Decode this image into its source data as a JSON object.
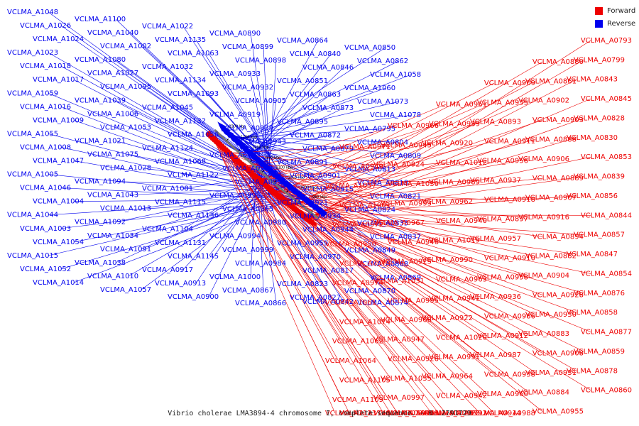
{
  "caption": "Vibrio cholerae LMA3894-4 chromosome I, complete sequence. - 0..2791729",
  "legend": [
    {
      "label": "Forward",
      "color": "#ee0000"
    },
    {
      "label": "Reverse",
      "color": "#0000ee"
    }
  ],
  "colors": {
    "forward": "#ee0000",
    "reverse": "#0000ee",
    "backbone": "#777777"
  },
  "ticks": [
    "950 kbp",
    "1000 kbp",
    "1050 kbp",
    "1100 kbp",
    "1150 kbp",
    "1200 kbp",
    "1250 kbp",
    "1300 kbp"
  ],
  "reverse_labels": [
    "VCLMA_A1048",
    "VCLMA_A1026",
    "VCLMA_A1024",
    "VCLMA_A1023",
    "VCLMA_A1018",
    "VCLMA_A1017",
    "VCLMA_A1059",
    "VCLMA_A1016",
    "VCLMA_A1009",
    "VCLMA_A1055",
    "VCLMA_A1008",
    "VCLMA_A1047",
    "VCLMA_A1005",
    "VCLMA_A1046",
    "VCLMA_A1004",
    "VCLMA_A1044",
    "VCLMA_A1003",
    "VCLMA_A1054",
    "VCLMA_A1015",
    "VCLMA_A1052",
    "VCLMA_A1014",
    "VCLMA_A1100",
    "VCLMA_A1040",
    "VCLMA_A1002",
    "VCLMA_A1080",
    "VCLMA_A1027",
    "VCLMA_A1095",
    "VCLMA_A1039",
    "VCLMA_A1006",
    "VCLMA_A1053",
    "VCLMA_A1021",
    "VCLMA_A1075",
    "VCLMA_A1028",
    "VCLMA_A1094",
    "VCLMA_A1043",
    "VCLMA_A1013",
    "VCLMA_A1092",
    "VCLMA_A1034",
    "VCLMA_A1091",
    "VCLMA_A1038",
    "VCLMA_A1010",
    "VCLMA_A1057",
    "VCLMA_A1022",
    "VCLMA_A1135",
    "VCLMA_A1063",
    "VCLMA_A1032",
    "VCLMA_A1134",
    "VCLMA_A1093",
    "VCLMA_A1045",
    "VCLMA_A1132",
    "VCLMA_A1056",
    "VCLMA_A1124",
    "VCLMA_A1068",
    "VCLMA_A1122",
    "VCLMA_A1081",
    "VCLMA_A1115",
    "VCLMA_A1136",
    "VCLMA_A1104",
    "VCLMA_A1131",
    "VCLMA_A1145",
    "VCLMA_A0917",
    "VCLMA_A0913",
    "VCLMA_A0900",
    "VCLMA_A0890",
    "VCLMA_A0899",
    "VCLMA_A0898",
    "VCLMA_A0933",
    "VCLMA_A0932",
    "VCLMA_A0905",
    "VCLMA_A0919",
    "VCLMA_A0929",
    "VCLMA_A0943",
    "VCLMA_A0982",
    "VCLMA_A0981",
    "VCLMA_A0954",
    "VCLMA_A0996",
    "VCLMA_A0965",
    "VCLMA_A0980",
    "VCLMA_A0994",
    "VCLMA_A0999",
    "VCLMA_A0984",
    "VCLMA_A1000",
    "VCLMA_A0867",
    "VCLMA_A0866",
    "VCLMA_A0864",
    "VCLMA_A0840",
    "VCLMA_A0846",
    "VCLMA_A0851",
    "VCLMA_A0863",
    "VCLMA_A0873",
    "VCLMA_A0895",
    "VCLMA_A0872",
    "VCLMA_A0879",
    "VCLMA_A0891",
    "VCLMA_A0901",
    "VCLMA_A0915",
    "VCLMA_A0921",
    "VCLMA_A0934",
    "VCLMA_A0944",
    "VCLMA_A0959",
    "VCLMA_A0970",
    "VCLMA_A0817",
    "VCLMA_A0823",
    "VCLMA_A0827",
    "VCLMA_A0842",
    "VCLMA_A0850",
    "VCLMA_A0862",
    "VCLMA_A1058",
    "VCLMA_A1060",
    "VCLMA_A1073",
    "VCLMA_A1078",
    "VCLMA_A0795",
    "VCLMA_A0804",
    "VCLMA_A0809",
    "VCLMA_A0813",
    "VCLMA_A0818",
    "VCLMA_A0821",
    "VCLMA_A0824",
    "VCLMA_A0835",
    "VCLMA_A0837",
    "VCLMA_A0849",
    "VCLMA_A0868",
    "VCLMA_A0869",
    "VCLMA_A0870",
    "VCLMA_A0874"
  ],
  "forward_labels": [
    "VCLMA_A0793",
    "VCLMA_A0799",
    "VCLMA_A0843",
    "VCLMA_A0845",
    "VCLMA_A0828",
    "VCLMA_A0830",
    "VCLMA_A0853",
    "VCLMA_A0839",
    "VCLMA_A0856",
    "VCLMA_A0844",
    "VCLMA_A0857",
    "VCLMA_A0847",
    "VCLMA_A0854",
    "VCLMA_A0876",
    "VCLMA_A0858",
    "VCLMA_A0877",
    "VCLMA_A0859",
    "VCLMA_A0878",
    "VCLMA_A0860",
    "VCLMA_A0880",
    "VCLMA_A0861",
    "VCLMA_A0902",
    "VCLMA_A0903",
    "VCLMA_A0888",
    "VCLMA_A0906",
    "VCLMA_A0889",
    "VCLMA_A0907",
    "VCLMA_A0916",
    "VCLMA_A0894",
    "VCLMA_A0882",
    "VCLMA_A0904",
    "VCLMA_A0928",
    "VCLMA_A0930",
    "VCLMA_A0883",
    "VCLMA_A0908",
    "VCLMA_A0931",
    "VCLMA_A0884",
    "VCLMA_A0955",
    "VCLMA_A0909",
    "VCLMA_A0935",
    "VCLMA_A0893",
    "VCLMA_A0911",
    "VCLMA_A0956",
    "VCLMA_A0937",
    "VCLMA_A0918",
    "VCLMA_A0897",
    "VCLMA_A0957",
    "VCLMA_A0910",
    "VCLMA_A0958",
    "VCLMA_A0936",
    "VCLMA_A0986",
    "VCLMA_A0912",
    "VCLMA_A0987",
    "VCLMA_A0938",
    "VCLMA_A0960",
    "VCLMA_A0914",
    "VCLMA_A0988",
    "VCLMA_A0961",
    "VCLMA_A0939",
    "VCLMA_A0920",
    "VCLMA_A1012",
    "VCLMA_A0989",
    "VCLMA_A0962",
    "VCLMA_A0940",
    "VCLMA_A1019",
    "VCLMA_A0990",
    "VCLMA_A0963",
    "VCLMA_A0941",
    "VCLMA_A0922",
    "VCLMA_A1020",
    "VCLMA_A0991",
    "VCLMA_A0964",
    "VCLMA_A0942",
    "VCLMA_A0923",
    "VCLMA_A1029",
    "VCLMA_A0992",
    "VCLMA_A0966",
    "VCLMA_A0945",
    "VCLMA_A0924",
    "VCLMA_A1030",
    "VCLMA_A0993",
    "VCLMA_A0967",
    "VCLMA_A0946",
    "VCLMA_A0925",
    "VCLMA_A1031",
    "VCLMA_A0995",
    "VCLMA_A0968",
    "VCLMA_A0947",
    "VCLMA_A0926",
    "VCLMA_A1035",
    "VCLMA_A0997",
    "VCLMA_A0969",
    "VCLMA_A0948",
    "VCLMA_A1036",
    "VCLMA_A0998",
    "VCLMA_A0971",
    "VCLMA_A0949",
    "VCLMA_A1037",
    "VCLMA_A1001",
    "VCLMA_A0972",
    "VCLMA_A0950",
    "VCLMA_A0973",
    "VCLMA_A0974",
    "VCLMA_A1061",
    "VCLMA_A1074",
    "VCLMA_A1062",
    "VCLMA_A1064",
    "VCLMA_A1105",
    "VCLMA_A1109",
    "VCLMA_A1123",
    "VCLMA_A1146"
  ]
}
